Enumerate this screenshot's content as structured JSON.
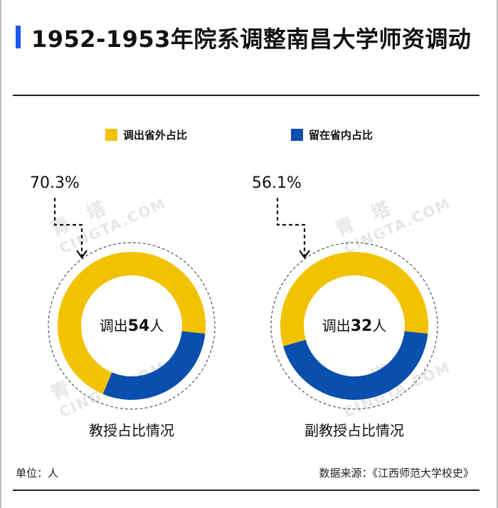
{
  "title": "1952-1953年院系调整南昌大学师资调动",
  "legend": [
    {
      "label": "调出省外占比",
      "color": "#f2c200"
    },
    {
      "label": "留在省内占比",
      "color": "#0a4fad"
    }
  ],
  "footer": {
    "unit": "单位：人",
    "source": "数据来源：《江西师范大学校史》"
  },
  "watermark": {
    "name": "青 塔",
    "domain": "CINGTA.COM"
  },
  "chart_data": [
    {
      "type": "pie",
      "subtitle": "教授占比情况",
      "center_prefix": "调出",
      "center_value": "54",
      "center_suffix": "人",
      "callout": "70.3%",
      "series": [
        {
          "name": "调出省外占比",
          "value": 70.3,
          "color": "#f2c200"
        },
        {
          "name": "留在省内占比",
          "value": 29.7,
          "color": "#0a4fad"
        }
      ]
    },
    {
      "type": "pie",
      "subtitle": "副教授占比情况",
      "center_prefix": "调出",
      "center_value": "32",
      "center_suffix": "人",
      "callout": "56.1%",
      "series": [
        {
          "name": "调出省外占比",
          "value": 56.1,
          "color": "#f2c200"
        },
        {
          "name": "留在省内占比",
          "value": 43.9,
          "color": "#0a4fad"
        }
      ]
    }
  ]
}
